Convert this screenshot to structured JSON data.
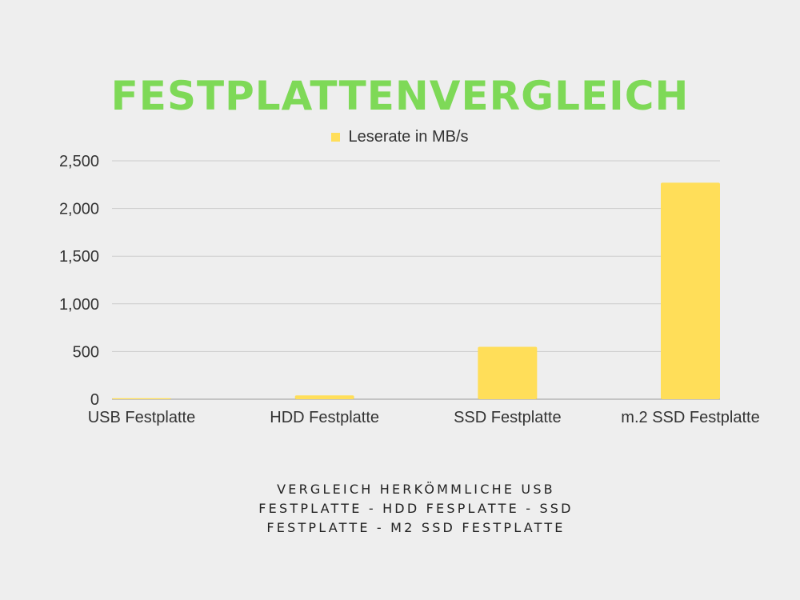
{
  "title": "FESTPLATTENVERGLEICH",
  "subtitle": "VERGLEICH HERKÖMMLICHE USB FESTPLATTE - HDD FESPLATTE - SSD FESTPLATTE - M2 SSD FESTPLATTE",
  "colors": {
    "background": "#eeeeee",
    "title": "#7ed957",
    "bar": "#ffde59",
    "grid": "#cccccc",
    "text": "#333333"
  },
  "chart_data": {
    "type": "bar",
    "title": "",
    "xlabel": "",
    "ylabel": "",
    "categories": [
      "USB Festplatte",
      "HDD Festplatte",
      "SSD Festplatte",
      "m.2 SSD Festplatte"
    ],
    "series": [
      {
        "name": "Leserate in MB/s",
        "values": [
          10,
          40,
          550,
          2270
        ]
      }
    ],
    "ylim": [
      0,
      2500
    ],
    "yticks": [
      0,
      500,
      1000,
      1500,
      2000,
      2500
    ],
    "ytick_labels": [
      "0",
      "500",
      "1,000",
      "1,500",
      "2,000",
      "2,500"
    ],
    "grid": true,
    "legend_position": "top-center"
  }
}
